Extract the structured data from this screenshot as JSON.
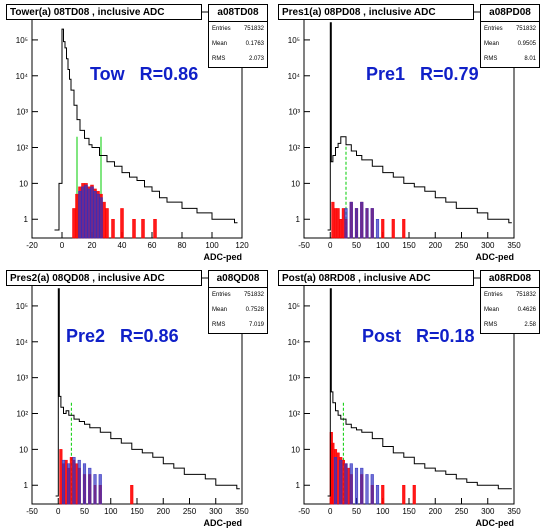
{
  "panels": [
    {
      "title": "Tower(a) 08TD08 , inclusive ADC",
      "stats": {
        "name": "a08TD08",
        "entries_label": "Entries",
        "entries": "751832",
        "mean_label": "Mean",
        "mean": "0.1763",
        "rms_label": "RMS",
        "rms": "2.073"
      },
      "label": "Tow   R=0.86",
      "xlabel": "ADC-ped"
    },
    {
      "title": "Pres1(a) 08PD08 , inclusive ADC",
      "stats": {
        "name": "a08PD08",
        "entries_label": "Entries",
        "entries": "751832",
        "mean_label": "Mean",
        "mean": "0.9505",
        "rms_label": "RMS",
        "rms": "8.01"
      },
      "label": "Pre1   R=0.79",
      "xlabel": "ADC-ped"
    },
    {
      "title": "Pres2(a) 08QD08 , inclusive ADC",
      "stats": {
        "name": "a08QD08",
        "entries_label": "Entries",
        "entries": "751832",
        "mean_label": "Mean",
        "mean": "0.7528",
        "rms_label": "RMS",
        "rms": "7.019"
      },
      "label": "Pre2   R=0.86",
      "xlabel": "ADC-ped"
    },
    {
      "title": "Post(a) 08RD08 , inclusive ADC",
      "stats": {
        "name": "a08RD08",
        "entries_label": "Entries",
        "entries": "751832",
        "mean_label": "Mean",
        "mean": "0.4626",
        "rms_label": "RMS",
        "rms": "2.58"
      },
      "label": "Post   R=0.18",
      "xlabel": "ADC-ped"
    }
  ],
  "chart_data": [
    {
      "type": "bar",
      "title": "Tower(a) 08TD08 , inclusive ADC",
      "xlabel": "ADC-ped",
      "ylabel": "",
      "xlim": [
        -20,
        120
      ],
      "ylim": [
        0.3,
        600000
      ],
      "yscale": "log",
      "xticks": [
        -20,
        0,
        20,
        40,
        60,
        80,
        100,
        120
      ],
      "yticks": [
        {
          "v": 1,
          "t": "1"
        },
        {
          "v": 10,
          "t": "10"
        },
        {
          "v": 100,
          "t": "10²"
        },
        {
          "v": 1000,
          "t": "10³"
        },
        {
          "v": 10000,
          "t": "10⁴"
        },
        {
          "v": 100000,
          "t": "10⁵"
        }
      ],
      "green_lines": [
        10,
        26
      ],
      "series": [
        {
          "role": "inclusive",
          "color": "#000000",
          "x": [
            -5,
            -2,
            0,
            1,
            2,
            3,
            4,
            5,
            6,
            8,
            10,
            12,
            15,
            18,
            20,
            25,
            30,
            35,
            40,
            45,
            50,
            55,
            60,
            65,
            70,
            80,
            90,
            100,
            110,
            115
          ],
          "y": [
            0.5,
            10,
            200000,
            90000,
            60000,
            30000,
            15000,
            8000,
            4000,
            1500,
            600,
            300,
            180,
            120,
            100,
            60,
            40,
            30,
            20,
            15,
            12,
            8,
            6,
            4,
            3,
            2,
            1.5,
            1,
            1,
            0.8
          ]
        },
        {
          "role": "red",
          "color": "#ff0000",
          "x": [
            8,
            10,
            12,
            14,
            16,
            18,
            20,
            22,
            24,
            26,
            28,
            30,
            34,
            40,
            48,
            54,
            62
          ],
          "y": [
            2,
            5,
            8,
            10,
            10,
            8,
            9,
            7,
            6,
            5,
            3,
            2,
            1,
            2,
            1,
            1,
            1
          ]
        },
        {
          "role": "blue",
          "color": "#2020c0",
          "x": [
            12,
            14,
            16,
            18,
            20,
            22,
            24,
            26
          ],
          "y": [
            6,
            8,
            9,
            7,
            8,
            6,
            5,
            4
          ]
        }
      ]
    },
    {
      "type": "bar",
      "title": "Pres1(a) 08PD08 , inclusive ADC",
      "xlabel": "ADC-ped",
      "ylabel": "",
      "xlim": [
        -50,
        350
      ],
      "ylim": [
        0.3,
        600000
      ],
      "yscale": "log",
      "xticks": [
        -50,
        0,
        50,
        100,
        150,
        200,
        250,
        300,
        350
      ],
      "yticks": [
        {
          "v": 1,
          "t": "1"
        },
        {
          "v": 10,
          "t": "10"
        },
        {
          "v": 100,
          "t": "10²"
        },
        {
          "v": 1000,
          "t": "10³"
        },
        {
          "v": 10000,
          "t": "10⁴"
        },
        {
          "v": 100000,
          "t": "10⁵"
        }
      ],
      "green_lines": [
        30
      ],
      "series": [
        {
          "role": "inclusive",
          "color": "#000000",
          "x": [
            -5,
            0,
            2,
            5,
            10,
            15,
            20,
            30,
            40,
            50,
            60,
            80,
            100,
            120,
            140,
            160,
            180,
            200,
            220,
            240,
            260,
            280,
            300,
            320,
            340
          ],
          "y": [
            0.5,
            300000,
            40,
            60,
            100,
            130,
            200,
            120,
            80,
            60,
            45,
            30,
            20,
            15,
            10,
            8,
            6,
            4,
            3,
            2,
            2,
            1.5,
            1,
            1,
            0.8
          ]
        },
        {
          "role": "red",
          "color": "#ff0000",
          "x": [
            5,
            10,
            15,
            20,
            25,
            30,
            40,
            50,
            60,
            70,
            80,
            100,
            120,
            140
          ],
          "y": [
            3,
            2,
            2,
            1,
            2,
            1,
            3,
            2,
            3,
            2,
            2,
            1,
            1,
            1
          ]
        },
        {
          "role": "blue",
          "color": "#2020c0",
          "x": [
            30,
            40,
            50,
            60,
            70,
            80,
            90
          ],
          "y": [
            2,
            3,
            2,
            3,
            2,
            2,
            1
          ]
        }
      ]
    },
    {
      "type": "bar",
      "title": "Pres2(a) 08QD08 , inclusive ADC",
      "xlabel": "ADC-ped",
      "ylabel": "",
      "xlim": [
        -50,
        350
      ],
      "ylim": [
        0.3,
        600000
      ],
      "yscale": "log",
      "xticks": [
        -50,
        0,
        50,
        100,
        150,
        200,
        250,
        300,
        350
      ],
      "yticks": [
        {
          "v": 1,
          "t": "1"
        },
        {
          "v": 10,
          "t": "10"
        },
        {
          "v": 100,
          "t": "10²"
        },
        {
          "v": 1000,
          "t": "10³"
        },
        {
          "v": 10000,
          "t": "10⁴"
        },
        {
          "v": 100000,
          "t": "10⁵"
        }
      ],
      "green_lines": [
        25
      ],
      "series": [
        {
          "role": "inclusive",
          "color": "#000000",
          "x": [
            -5,
            0,
            2,
            5,
            10,
            15,
            20,
            30,
            40,
            50,
            60,
            80,
            100,
            120,
            140,
            160,
            180,
            200,
            220,
            240,
            260,
            280,
            300,
            320,
            340
          ],
          "y": [
            0.5,
            300000,
            300,
            150,
            100,
            120,
            90,
            70,
            60,
            50,
            40,
            30,
            20,
            15,
            10,
            8,
            6,
            4,
            3,
            2,
            2,
            1.5,
            1,
            1,
            0.8
          ]
        },
        {
          "role": "red",
          "color": "#ff0000",
          "x": [
            5,
            10,
            15,
            20,
            25,
            30,
            35,
            40,
            50,
            60,
            70,
            80,
            140
          ],
          "y": [
            10,
            4,
            5,
            3,
            6,
            5,
            4,
            3,
            2,
            2,
            1,
            1,
            1
          ]
        },
        {
          "role": "blue",
          "color": "#2020c0",
          "x": [
            10,
            20,
            30,
            40,
            50,
            60,
            70,
            80
          ],
          "y": [
            5,
            4,
            6,
            5,
            4,
            3,
            2,
            2
          ]
        }
      ]
    },
    {
      "type": "bar",
      "title": "Post(a) 08RD08 , inclusive ADC",
      "xlabel": "ADC-ped",
      "ylabel": "",
      "xlim": [
        -50,
        350
      ],
      "ylim": [
        0.3,
        600000
      ],
      "yscale": "log",
      "xticks": [
        -50,
        0,
        50,
        100,
        150,
        200,
        250,
        300,
        350
      ],
      "yticks": [
        {
          "v": 1,
          "t": "1"
        },
        {
          "v": 10,
          "t": "10"
        },
        {
          "v": 100,
          "t": "10²"
        },
        {
          "v": 1000,
          "t": "10³"
        },
        {
          "v": 10000,
          "t": "10⁴"
        },
        {
          "v": 100000,
          "t": "10⁵"
        }
      ],
      "green_lines": [
        25
      ],
      "series": [
        {
          "role": "inclusive",
          "color": "#000000",
          "x": [
            -5,
            0,
            2,
            5,
            10,
            15,
            20,
            30,
            40,
            50,
            60,
            80,
            100,
            120,
            140,
            160,
            180,
            200,
            220,
            240,
            260,
            280,
            300,
            320,
            340
          ],
          "y": [
            0.5,
            300000,
            400,
            200,
            120,
            90,
            70,
            50,
            40,
            35,
            30,
            20,
            12,
            8,
            6,
            4,
            3,
            2.5,
            2,
            1.5,
            1.2,
            1,
            1,
            0.8,
            0.8
          ]
        },
        {
          "role": "red",
          "color": "#ff0000",
          "x": [
            2,
            5,
            10,
            15,
            20,
            25,
            30,
            35,
            40,
            60,
            80,
            100,
            140,
            160
          ],
          "y": [
            30,
            15,
            10,
            8,
            6,
            5,
            4,
            3,
            2,
            2,
            1,
            1,
            1,
            1
          ]
        },
        {
          "role": "blue",
          "color": "#2020c0",
          "x": [
            10,
            20,
            30,
            40,
            50,
            60,
            70,
            80,
            90
          ],
          "y": [
            6,
            5,
            4,
            4,
            3,
            3,
            2,
            2,
            1
          ]
        }
      ]
    }
  ]
}
